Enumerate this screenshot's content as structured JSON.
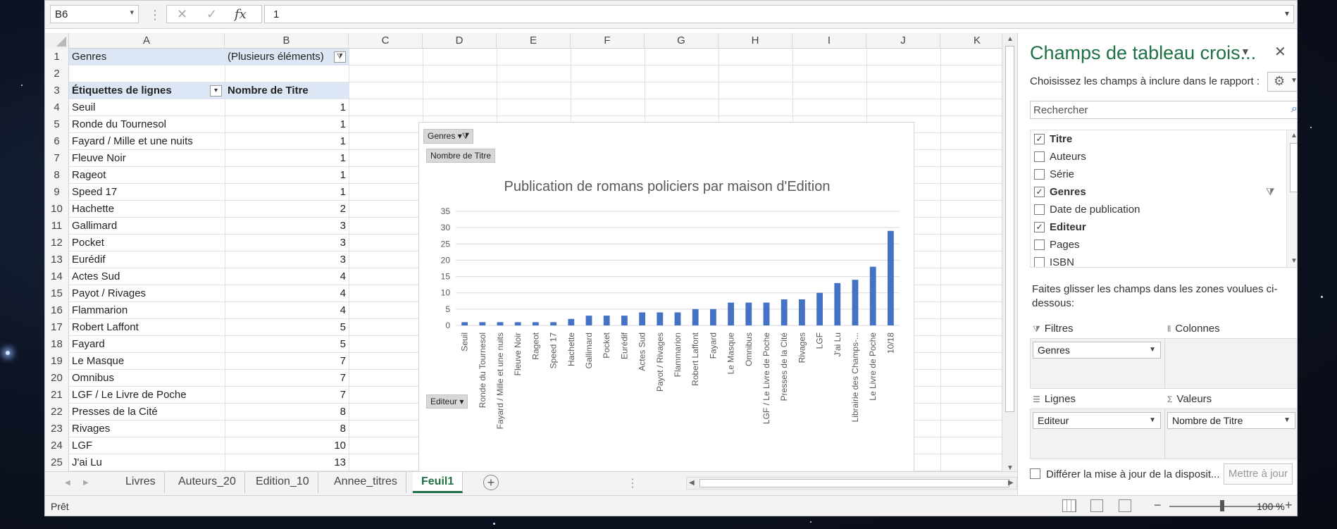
{
  "formula_bar": {
    "name_box": "B6",
    "formula": "1"
  },
  "columns": [
    "A",
    "B",
    "C",
    "D",
    "E",
    "F",
    "G",
    "H",
    "I",
    "J",
    "K"
  ],
  "rows": [
    {
      "n": "1",
      "a": "Genres",
      "b": "(Plusieurs éléments)"
    },
    {
      "n": "2",
      "a": "",
      "b": ""
    },
    {
      "n": "3",
      "a": "Étiquettes de lignes",
      "b": "Nombre de Titre"
    },
    {
      "n": "4",
      "a": "Seuil",
      "b": "1"
    },
    {
      "n": "5",
      "a": "Ronde du Tournesol",
      "b": "1"
    },
    {
      "n": "6",
      "a": "Fayard / Mille et une nuits",
      "b": "1"
    },
    {
      "n": "7",
      "a": "Fleuve Noir",
      "b": "1"
    },
    {
      "n": "8",
      "a": "Rageot",
      "b": "1"
    },
    {
      "n": "9",
      "a": "Speed 17",
      "b": "1"
    },
    {
      "n": "10",
      "a": "Hachette",
      "b": "2"
    },
    {
      "n": "11",
      "a": "Gallimard",
      "b": "3"
    },
    {
      "n": "12",
      "a": "Pocket",
      "b": "3"
    },
    {
      "n": "13",
      "a": "Eurédif",
      "b": "3"
    },
    {
      "n": "14",
      "a": "Actes Sud",
      "b": "4"
    },
    {
      "n": "15",
      "a": "Payot / Rivages",
      "b": "4"
    },
    {
      "n": "16",
      "a": "Flammarion",
      "b": "4"
    },
    {
      "n": "17",
      "a": "Robert Laffont",
      "b": "5"
    },
    {
      "n": "18",
      "a": "Fayard",
      "b": "5"
    },
    {
      "n": "19",
      "a": "Le Masque",
      "b": "7"
    },
    {
      "n": "20",
      "a": "Omnibus",
      "b": "7"
    },
    {
      "n": "21",
      "a": "LGF / Le Livre de Poche",
      "b": "7"
    },
    {
      "n": "22",
      "a": "Presses de la Cité",
      "b": "8"
    },
    {
      "n": "23",
      "a": "Rivages",
      "b": "8"
    },
    {
      "n": "24",
      "a": "LGF",
      "b": "10"
    },
    {
      "n": "25",
      "a": "J'ai Lu",
      "b": "13"
    }
  ],
  "chart": {
    "filter_button": "Genres",
    "value_button": "Nombre de Titre",
    "axis_button": "Editeur"
  },
  "chart_data": {
    "type": "bar",
    "title": "Publication de romans policiers par maison d'Edition",
    "categories": [
      "Seuil",
      "Ronde du Tournesol",
      "Fayard / Mille et une nuits",
      "Fleuve Noir",
      "Rageot",
      "Speed 17",
      "Hachette",
      "Gallimard",
      "Pocket",
      "Eurédif",
      "Actes Sud",
      "Payot / Rivages",
      "Flammarion",
      "Robert Laffont",
      "Fayard",
      "Le Masque",
      "Omnibus",
      "LGF / Le Livre de Poche",
      "Presses de la Cité",
      "Rivages",
      "LGF",
      "J'ai Lu",
      "Librairie des Champs-...",
      "Le Livre de Poche",
      "10/18"
    ],
    "values": [
      1,
      1,
      1,
      1,
      1,
      1,
      2,
      3,
      3,
      3,
      4,
      4,
      4,
      5,
      5,
      7,
      7,
      7,
      8,
      8,
      10,
      13,
      14,
      18,
      29
    ],
    "yticks": [
      "0",
      "5",
      "10",
      "15",
      "20",
      "25",
      "30",
      "35"
    ],
    "ylim": [
      0,
      35
    ],
    "grid": true,
    "bar_color": "#4472c4"
  },
  "sheet_tabs": [
    "Livres",
    "Auteurs_20",
    "Edition_10",
    "Annee_titres",
    "Feuil1"
  ],
  "active_sheet": "Feuil1",
  "status": {
    "ready": "Prêt",
    "zoom": "100 %"
  },
  "pivot": {
    "title": "Champs de tableau crois...",
    "subtitle": "Choisissez les champs à inclure dans le rapport :",
    "search_placeholder": "Rechercher",
    "fields": [
      {
        "label": "Titre",
        "checked": true,
        "bold": true
      },
      {
        "label": "Auteurs",
        "checked": false,
        "bold": false
      },
      {
        "label": "Série",
        "checked": false,
        "bold": false
      },
      {
        "label": "Genres",
        "checked": true,
        "bold": true
      },
      {
        "label": "Date de publication",
        "checked": false,
        "bold": false
      },
      {
        "label": "Editeur",
        "checked": true,
        "bold": true
      },
      {
        "label": "Pages",
        "checked": false,
        "bold": false
      },
      {
        "label": "ISBN",
        "checked": false,
        "bold": false
      }
    ],
    "drag_hint": "Faites glisser les champs dans les zones voulues ci-dessous:",
    "zones": {
      "filters_label": "Filtres",
      "filters_value": "Genres",
      "columns_label": "Colonnes",
      "rows_label": "Lignes",
      "rows_value": "Editeur",
      "values_label": "Valeurs",
      "values_value": "Nombre de Titre"
    },
    "defer_label": "Différer la mise à jour de la disposit...",
    "update_button": "Mettre à jour"
  },
  "accent_color": "#1e7145"
}
